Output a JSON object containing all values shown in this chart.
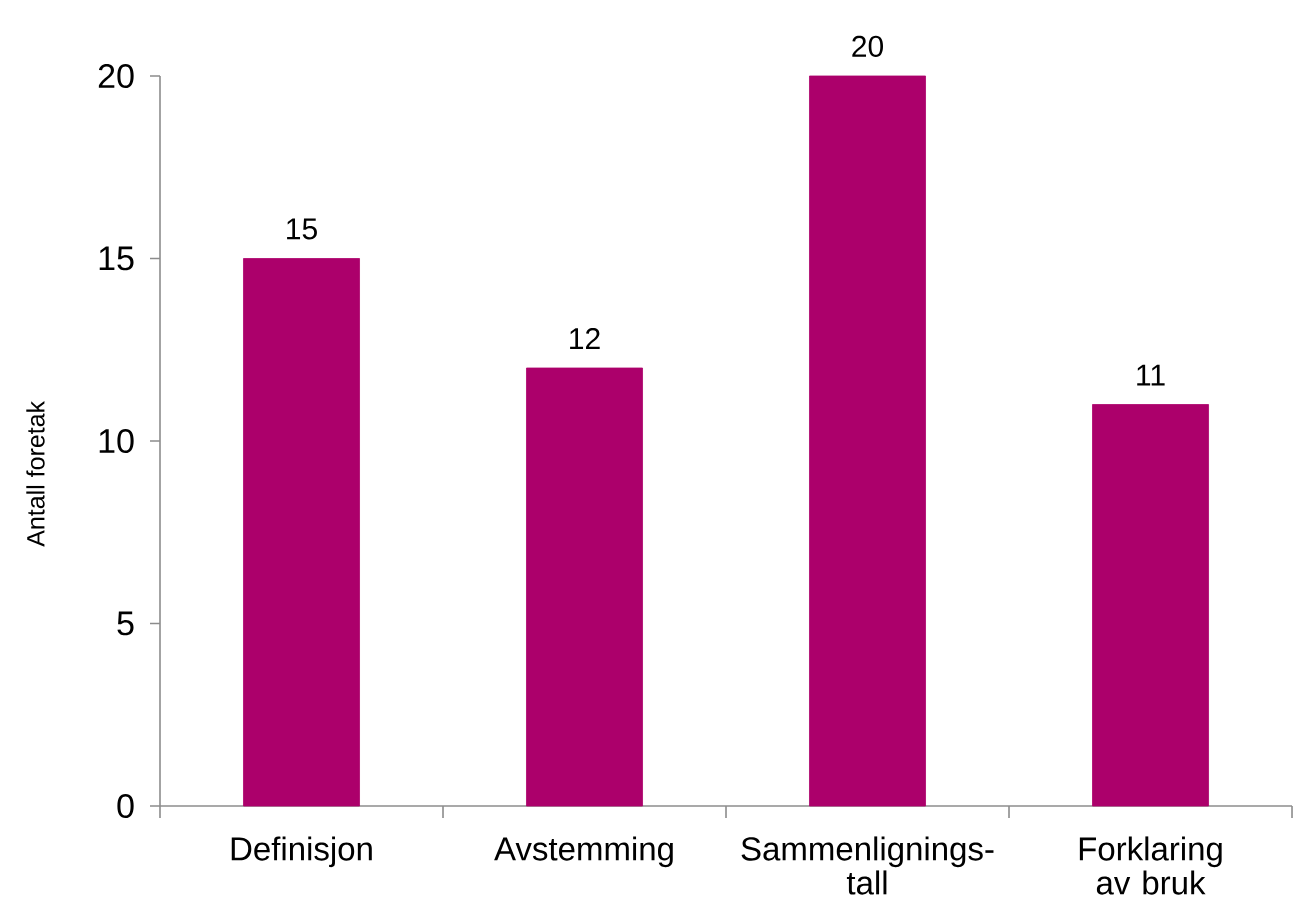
{
  "chart_data": {
    "type": "bar",
    "categories": [
      "Definisjon",
      "Avstemming",
      "Sammenlignings-tall",
      "Forklaring av bruk"
    ],
    "values": [
      15,
      12,
      20,
      11
    ],
    "color": "#ac006b",
    "ylabel": "Antall foretak",
    "ylim": [
      0,
      20
    ],
    "yticks": [
      0,
      5,
      10,
      15,
      20
    ],
    "data_labels": true
  }
}
